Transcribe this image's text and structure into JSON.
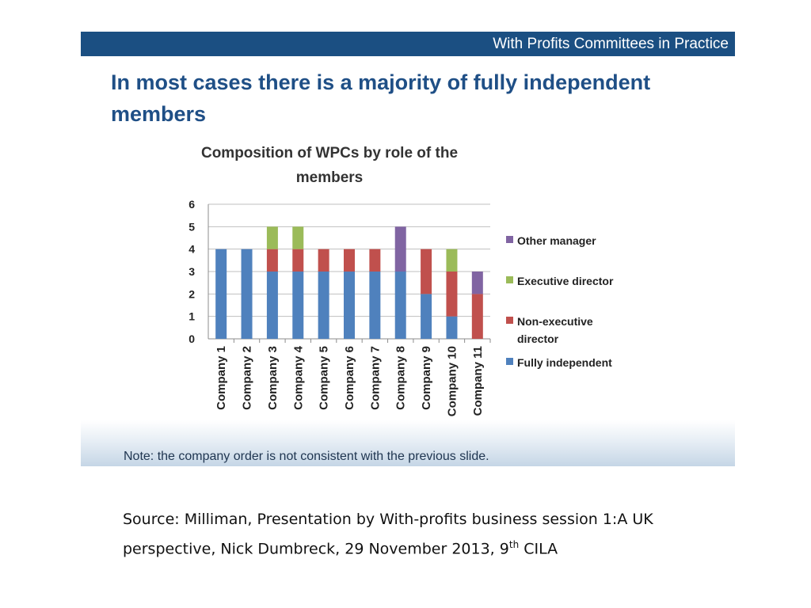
{
  "slide": {
    "banner_title": "With Profits Committees in Practice",
    "title": "In most cases there is a majority of fully independent members",
    "note": "Note: the company order is not consistent with the previous slide."
  },
  "source": {
    "text": "Source: Milliman, Presentation by With-profits business session 1:A UK perspective, Nick Dumbreck, 29 November 2013, 9",
    "superscript": "th",
    "suffix": " CILA"
  },
  "chart_data": {
    "type": "bar",
    "stacked": true,
    "title_lines": [
      "Composition of WPCs by role of the",
      "members"
    ],
    "categories": [
      "Company 1",
      "Company 2",
      "Company 3",
      "Company 4",
      "Company 5",
      "Company 6",
      "Company 7",
      "Company 8",
      "Company 9",
      "Company 10",
      "Company 11"
    ],
    "series": [
      {
        "name": "Fully independent",
        "color": "#4f81bd",
        "values": [
          4,
          4,
          3,
          3,
          3,
          3,
          3,
          3,
          2,
          1,
          0
        ]
      },
      {
        "name": "Non-executive director",
        "color": "#c0504d",
        "values": [
          0,
          0,
          1,
          1,
          1,
          1,
          1,
          0,
          2,
          2,
          2
        ]
      },
      {
        "name": "Executive director",
        "color": "#9bbb59",
        "values": [
          0,
          0,
          1,
          1,
          0,
          0,
          0,
          0,
          0,
          1,
          0
        ]
      },
      {
        "name": "Other manager",
        "color": "#8064a2",
        "values": [
          0,
          0,
          0,
          0,
          0,
          0,
          0,
          2,
          0,
          0,
          1
        ]
      }
    ],
    "legend_order": [
      "Other manager",
      "Executive director",
      "Non-executive director",
      "Fully independent"
    ],
    "legend_display": {
      "Other manager": [
        "Other manager"
      ],
      "Executive director": [
        "Executive director"
      ],
      "Non-executive director": [
        "Non-executive",
        "director"
      ],
      "Fully independent": [
        "Fully independent"
      ]
    },
    "yticks": [
      0,
      1,
      2,
      3,
      4,
      5,
      6
    ],
    "ylim": [
      0,
      6
    ],
    "grid": true,
    "legend_position": "right"
  }
}
